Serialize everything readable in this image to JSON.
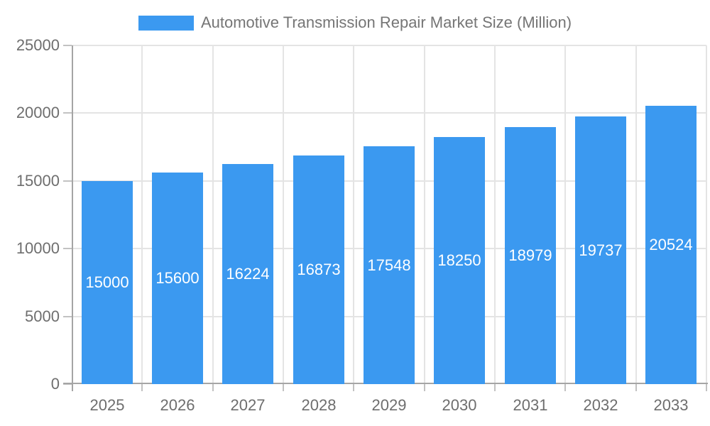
{
  "colors": {
    "bar": "#3B99F0",
    "axis_line": "#a5a5a5",
    "grid_line": "#e4e4e4",
    "tick_mark": "#c2c2c2",
    "axis_label": "#6e6e6e",
    "legend_text": "#757575",
    "bar_value_label": "#ffffff",
    "background": "#ffffff"
  },
  "legend": {
    "position": "top",
    "swatch": "bar-series-swatch"
  },
  "chart_data": {
    "type": "bar",
    "title": "Automotive Transmission Repair Market Size (Million)",
    "categories": [
      "2025",
      "2026",
      "2027",
      "2028",
      "2029",
      "2030",
      "2031",
      "2032",
      "2033"
    ],
    "values": [
      15000,
      15600,
      16224,
      16873,
      17548,
      18250,
      18979,
      19737,
      20524
    ],
    "bar_labels": [
      "15000",
      "15600",
      "16224",
      "16873",
      "17548",
      "18250",
      "18979",
      "19737",
      "20524"
    ],
    "xlabel": "",
    "ylabel": "",
    "ylim": [
      0,
      25000
    ],
    "yticks": [
      0,
      5000,
      10000,
      15000,
      20000,
      25000
    ],
    "ytick_labels": [
      "0",
      "5000",
      "10000",
      "15000",
      "20000",
      "25000"
    ],
    "grid": true,
    "legend_position": "top",
    "value_label_position": "inside-middle"
  }
}
